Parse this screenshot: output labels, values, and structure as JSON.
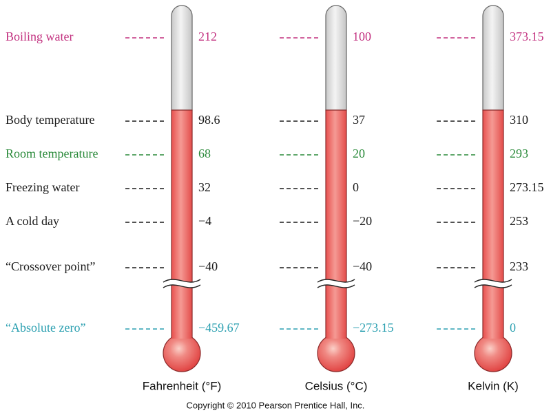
{
  "rows": [
    {
      "label": "Boiling water",
      "values": [
        "212",
        "100",
        "373.15"
      ],
      "color": "#c2307f"
    },
    {
      "label": "Body temperature",
      "values": [
        "98.6",
        "37",
        "310"
      ],
      "color": "#1a1a1a"
    },
    {
      "label": "Room temperature",
      "values": [
        "68",
        "20",
        "293"
      ],
      "color": "#2a8a3a"
    },
    {
      "label": "Freezing water",
      "values": [
        "32",
        "0",
        "273.15"
      ],
      "color": "#1a1a1a"
    },
    {
      "label": "A cold day",
      "values": [
        "−4",
        "−20",
        "253"
      ],
      "color": "#1a1a1a"
    },
    {
      "label": "“Crossover point”",
      "values": [
        "−40",
        "−40",
        "233"
      ],
      "color": "#1a1a1a"
    },
    {
      "label": "“Absolute zero”",
      "values": [
        "−459.67",
        "−273.15",
        "0"
      ],
      "color": "#2a9fb0"
    }
  ],
  "scales": [
    "Fahrenheit (°F)",
    "Celsius (°C)",
    "Kelvin (K)"
  ],
  "copyright": "Copyright © 2010 Pearson Prentice Hall, Inc."
}
